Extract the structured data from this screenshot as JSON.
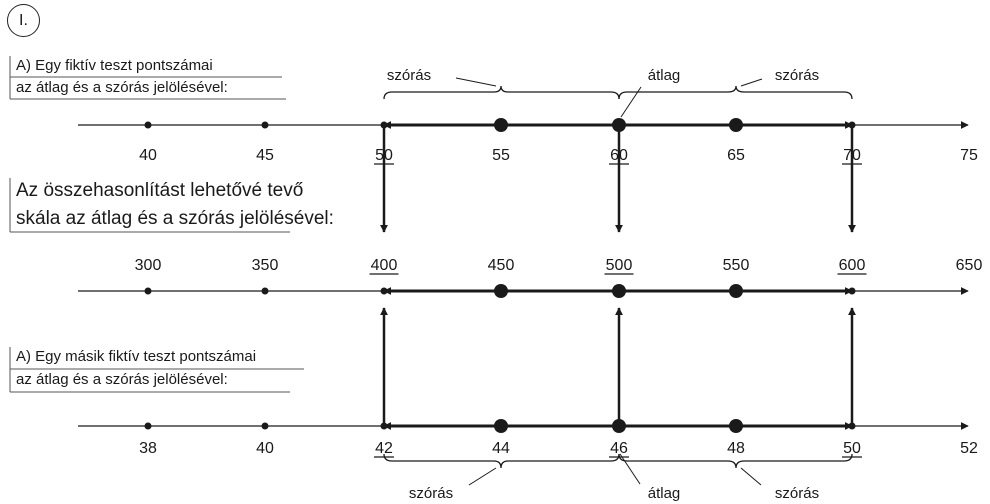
{
  "badge": "I.",
  "top_block": {
    "line1": "A) Egy fiktív teszt pontszámai",
    "line2": "az átlag és a szórás jelölésével:",
    "ticks": [
      "40",
      "45",
      "50",
      "55",
      "60",
      "65",
      "70",
      "75"
    ],
    "underlined_ticks": [
      "50",
      "60",
      "70"
    ],
    "brace_label_left": "szórás",
    "brace_label_mid": "átlag",
    "brace_label_right": "szórás"
  },
  "middle_block": {
    "line1": "Az összehasonlítást lehetővé tevő",
    "line2": "skála az átlag és a szórás jelölésével:",
    "ticks": [
      "300",
      "350",
      "400",
      "450",
      "500",
      "550",
      "600",
      "650"
    ],
    "underlined_ticks": [
      "400",
      "500",
      "600"
    ]
  },
  "bottom_block": {
    "line1": "A) Egy másik fiktív teszt pontszámai",
    "line2": "az átlag és a szórás jelölésével:",
    "ticks": [
      "38",
      "40",
      "42",
      "44",
      "46",
      "48",
      "50",
      "52"
    ],
    "underlined_ticks": [
      "42",
      "46",
      "50"
    ],
    "brace_label_left": "szórás",
    "brace_label_mid": "átlag",
    "brace_label_right": "szórás"
  },
  "colors": {
    "ink": "#1a1a1a",
    "background": "#ffffff"
  }
}
